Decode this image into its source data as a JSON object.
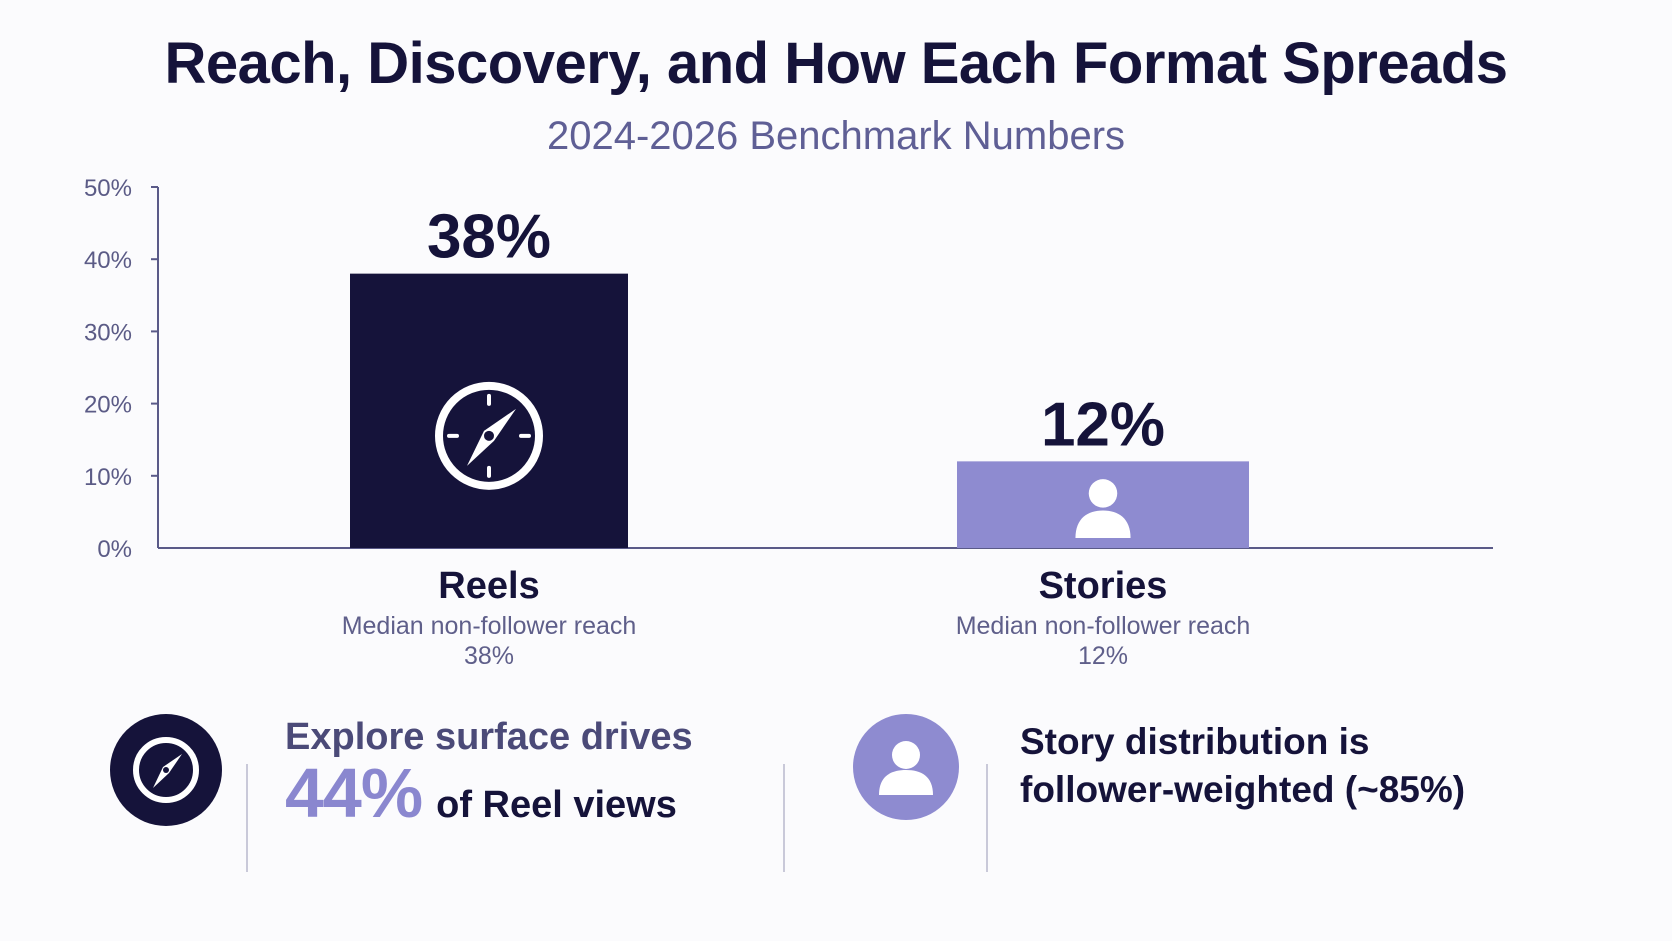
{
  "title": "Reach, Discovery, and How Each Format Spreads",
  "subtitle": "2024-2026 Benchmark Numbers",
  "colors": {
    "reels_bar": "#15133a",
    "stories_bar": "#8e8bd0",
    "axis": "#5a5a88",
    "accent": "#8a87cf"
  },
  "chart_data": {
    "type": "bar",
    "title": "Reach, Discovery, and How Each Format Spreads",
    "subtitle": "2024-2026 Benchmark Numbers",
    "categories": [
      "Reels",
      "Stories"
    ],
    "values": [
      38,
      12
    ],
    "value_labels": [
      "38%",
      "12%"
    ],
    "descriptions": [
      "Median non-follower reach",
      "Median non-follower reach"
    ],
    "description_values": [
      "38%",
      "12%"
    ],
    "bar_icons": [
      "compass-icon",
      "person-icon"
    ],
    "ylim": [
      0,
      50
    ],
    "yticks": [
      "0%",
      "10%",
      "20%",
      "30%",
      "40%",
      "50%"
    ],
    "ytick_values": [
      0,
      10,
      20,
      30,
      40,
      50
    ],
    "grid": false,
    "xlabel": "",
    "ylabel": ""
  },
  "callouts": {
    "explore": {
      "icon": "compass-icon",
      "line1": "Explore surface drives",
      "highlight": "44%",
      "line2": "of Reel views"
    },
    "stories": {
      "icon": "person-icon",
      "line1": "Story distribution is",
      "line2": "follower-weighted (~85%)"
    }
  }
}
